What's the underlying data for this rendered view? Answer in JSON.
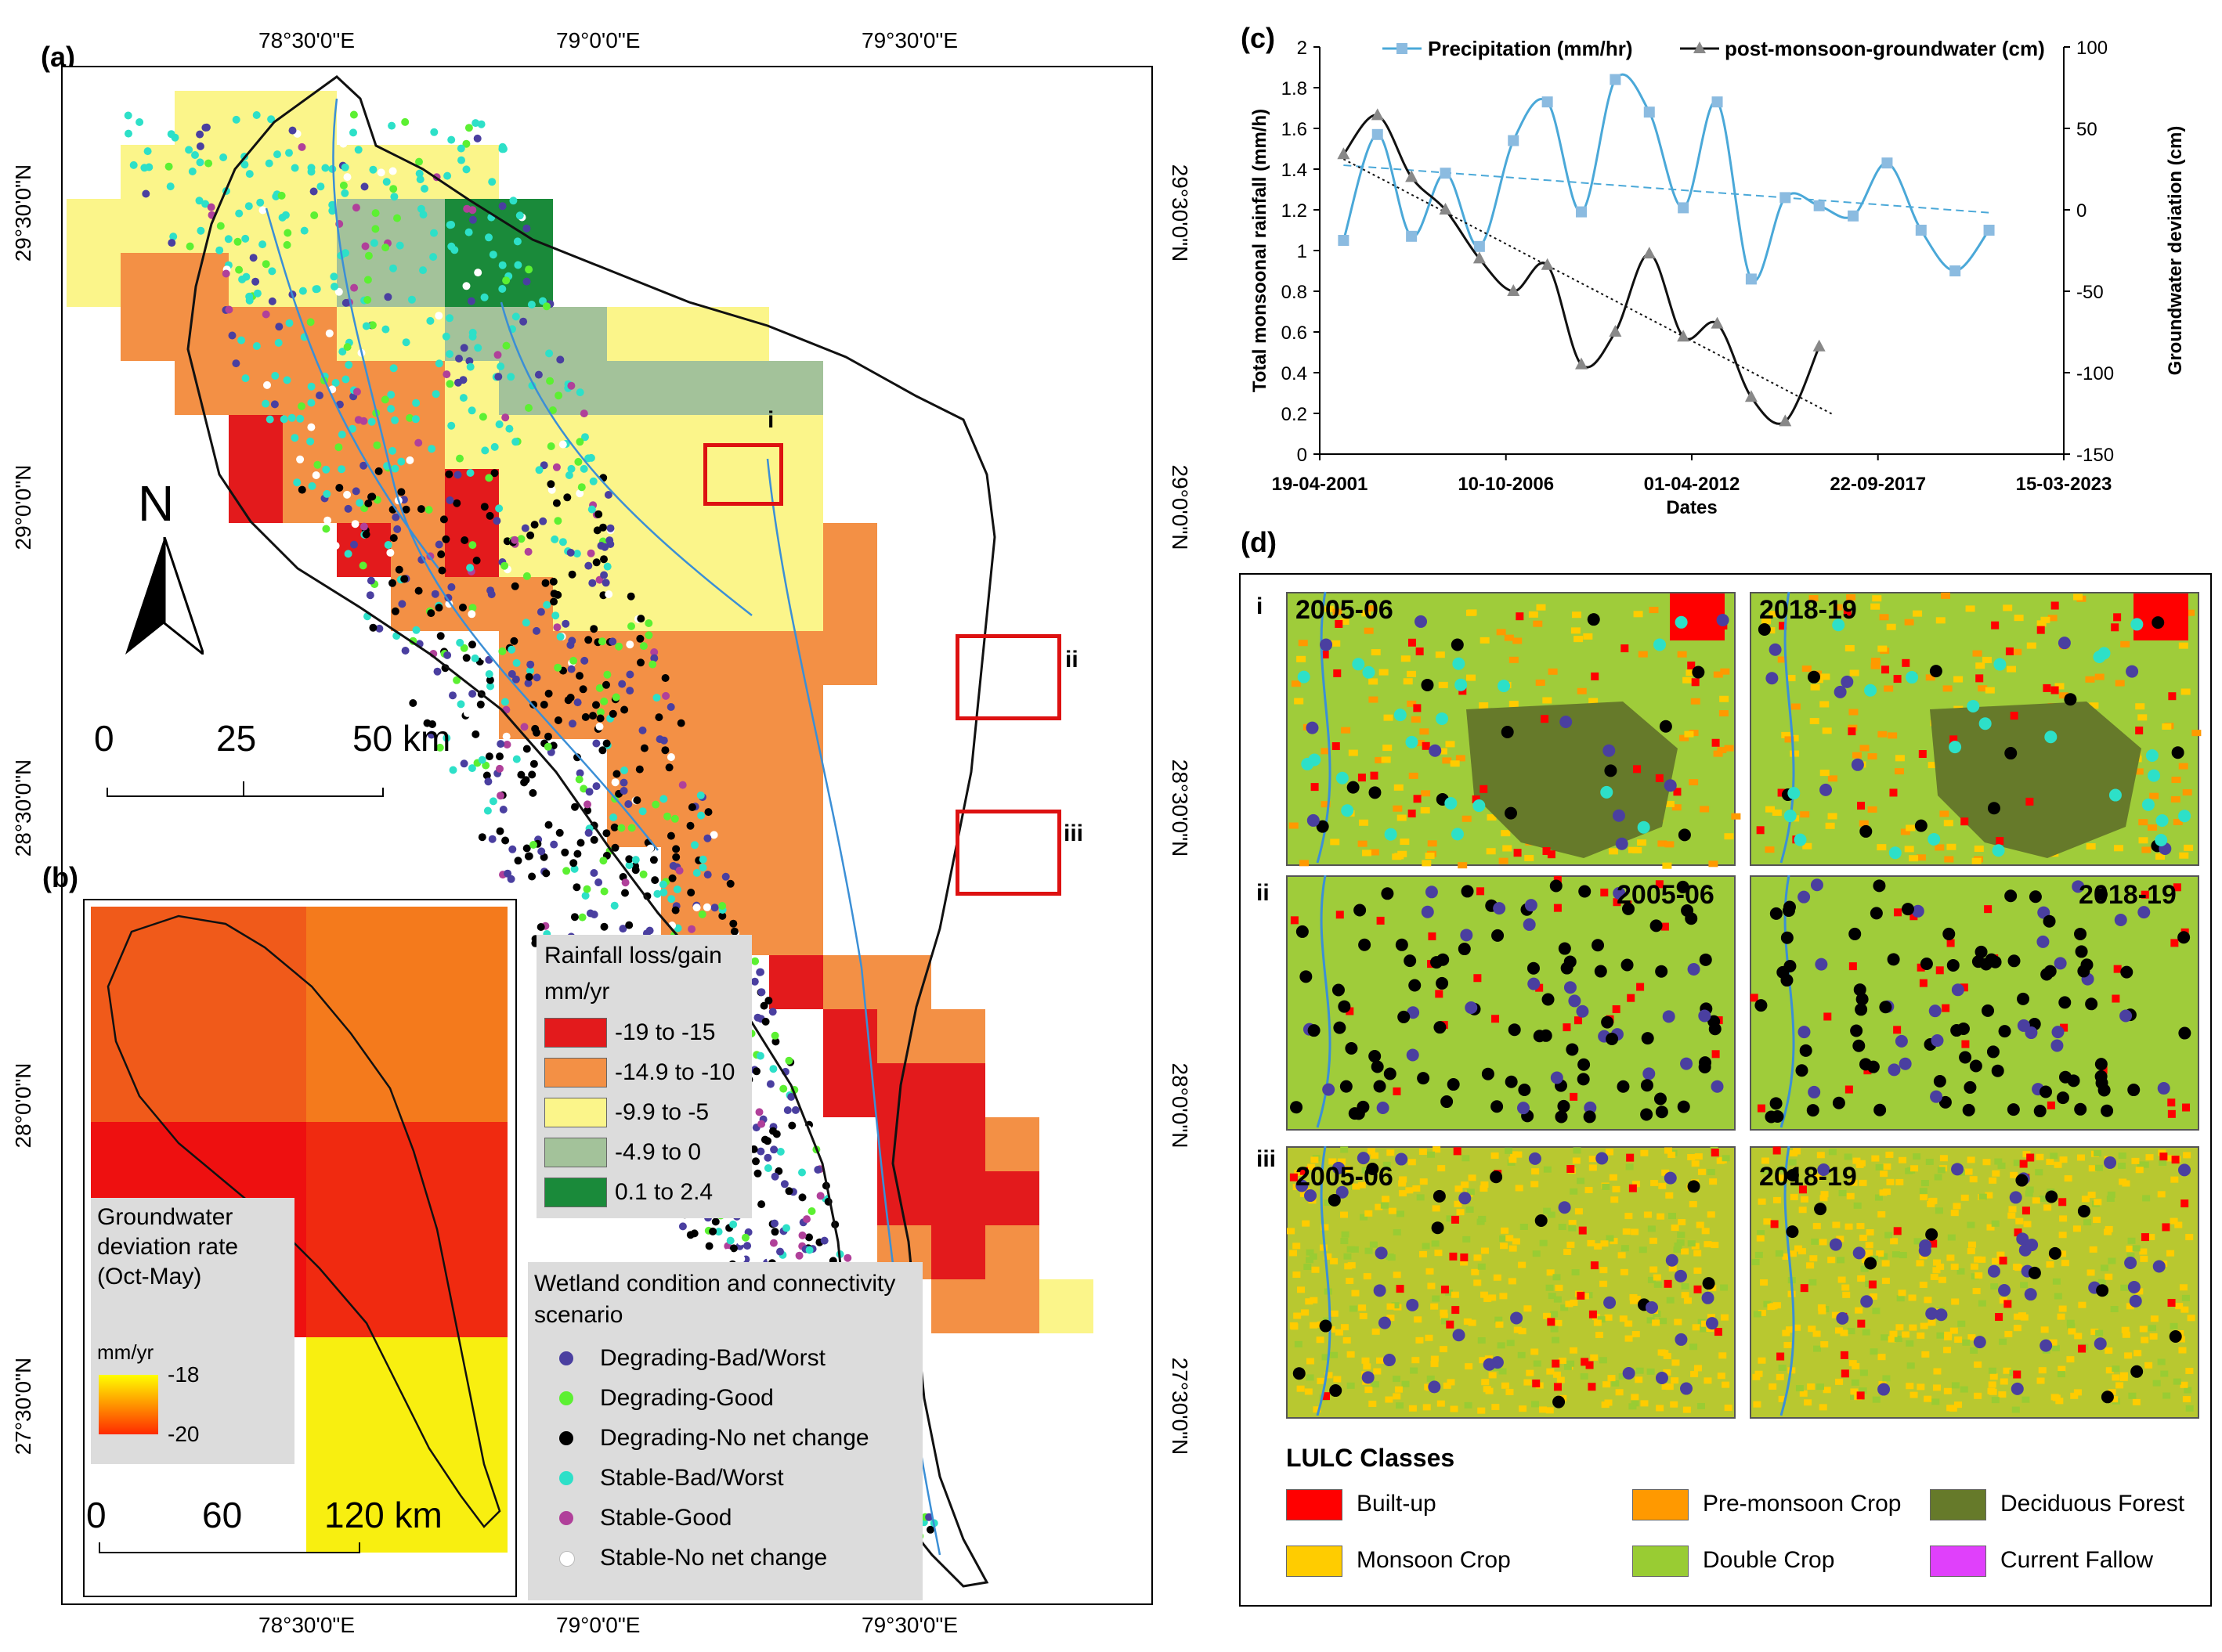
{
  "panels": {
    "a": "(a)",
    "b": "(b)",
    "c": "(c)",
    "d": "(d)"
  },
  "map_a": {
    "north": "N",
    "top_lon": [
      "78°30'0\"E",
      "79°0'0\"E",
      "79°30'0\"E"
    ],
    "bottom_lon": [
      "78°30'0\"E",
      "79°0'0\"E",
      "79°30'0\"E"
    ],
    "left_lat": [
      "29°30'0\"N",
      "29°0'0\"N",
      "28°30'0\"N",
      "28°0'0\"N",
      "27°30'0\"N"
    ],
    "right_lat": [
      "29°30'0\"N",
      "29°0'0\"N",
      "28°30'0\"N",
      "28°0'0\"N",
      "27°30'0\"N"
    ],
    "scale": [
      "0",
      "25",
      "50 km"
    ],
    "boxes": [
      "i",
      "ii",
      "iii"
    ],
    "rainfall_legend": {
      "title": "Rainfall loss/gain",
      "unit": "mm/yr",
      "items": [
        {
          "label": "-19 to -15",
          "color": "#e31a1c"
        },
        {
          "label": "-14.9 to -10",
          "color": "#f39045"
        },
        {
          "label": "-9.9 to -5",
          "color": "#fbf58a"
        },
        {
          "label": "-4.9 to 0",
          "color": "#a3c29a"
        },
        {
          "label": "0.1 to 2.4",
          "color": "#1a8a3a"
        }
      ]
    },
    "wetland_legend": {
      "title": "Wetland condition and connectivity scenario",
      "items": [
        {
          "label": "Degrading-Bad/Worst",
          "color": "#4a3fa0"
        },
        {
          "label": "Degrading-Good",
          "color": "#5cf032"
        },
        {
          "label": "Degrading-No net change",
          "color": "#000000"
        },
        {
          "label": "Stable-Bad/Worst",
          "color": "#2de0c8"
        },
        {
          "label": "Stable-Good",
          "color": "#b0409a"
        },
        {
          "label": "Stable-No net change",
          "color": "#ffffff"
        }
      ]
    }
  },
  "map_b": {
    "legend_title": "Groundwater deviation rate (Oct-May)",
    "unit": "mm/yr",
    "max": "-18",
    "min": "-20",
    "scale": [
      "0",
      "60",
      "120 km"
    ]
  },
  "chart_data": {
    "type": "line",
    "legend": [
      "Precipitation (mm/hr)",
      "post-monsoon-groundwater (cm)"
    ],
    "xlabel": "Dates",
    "ylabel": "Total monsoonal rainfall (mm/h)",
    "y2label": "Groundwater deviation (cm)",
    "x_ticks": [
      "19-04-2001",
      "10-10-2006",
      "01-04-2012",
      "22-09-2017",
      "15-03-2023"
    ],
    "y_ticks": [
      "0",
      "0.2",
      "0.4",
      "0.6",
      "0.8",
      "1",
      "1.2",
      "1.4",
      "1.6",
      "1.8",
      "2"
    ],
    "y2_ticks": [
      "-150",
      "-100",
      "-50",
      "0",
      "50",
      "100"
    ],
    "ylim": [
      0,
      2
    ],
    "y2lim": [
      -150,
      100
    ],
    "series": [
      {
        "name": "Precipitation (mm/hr)",
        "axis": "left",
        "x": [
          2002,
          2003,
          2004,
          2005,
          2006,
          2007,
          2008,
          2009,
          2010,
          2011,
          2012,
          2013,
          2014,
          2015,
          2016,
          2017,
          2018,
          2019,
          2020,
          2021,
          2022
        ],
        "values": [
          1.05,
          1.57,
          1.07,
          1.38,
          1.02,
          1.54,
          1.73,
          1.19,
          1.84,
          1.68,
          1.21,
          1.73,
          0.86,
          1.26,
          1.22,
          1.17,
          1.43,
          1.1,
          0.9,
          1.1,
          null
        ]
      },
      {
        "name": "post-monsoon-groundwater (cm)",
        "axis": "right",
        "x": [
          2002,
          2003,
          2004,
          2005,
          2006,
          2007,
          2008,
          2009,
          2010,
          2011,
          2012,
          2013,
          2014,
          2015,
          2016
        ],
        "values": [
          34,
          58,
          20,
          0,
          -30,
          -50,
          -34,
          -95,
          -75,
          -27,
          -78,
          -70,
          -115,
          -130,
          -84
        ]
      }
    ]
  },
  "panel_d": {
    "rows": [
      "i",
      "ii",
      "iii"
    ],
    "years": [
      "2005-06",
      "2018-19"
    ],
    "lulc_title": "LULC Classes",
    "lulc": [
      {
        "label": "Built-up",
        "color": "#ff0000"
      },
      {
        "label": "Pre-monsoon Crop",
        "color": "#ff9900"
      },
      {
        "label": "Deciduous Forest",
        "color": "#667a2a"
      },
      {
        "label": "Monsoon Crop",
        "color": "#ffcc00"
      },
      {
        "label": "Double Crop",
        "color": "#99cc33"
      },
      {
        "label": "Current Fallow",
        "color": "#e040fb"
      }
    ]
  }
}
